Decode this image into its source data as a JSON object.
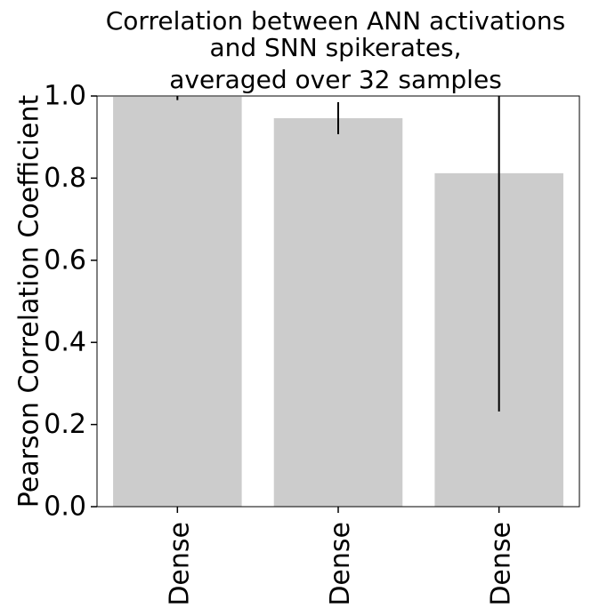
{
  "chart_data": {
    "type": "bar",
    "title_lines": [
      "Correlation between ANN activations",
      "and SNN spikerates,",
      "averaged over 32 samples"
    ],
    "xlabel": "",
    "ylabel": "Pearson Correlation Coefficient",
    "ylim": [
      0.0,
      1.0
    ],
    "yticks": [
      "0.0",
      "0.2",
      "0.4",
      "0.6",
      "0.8",
      "1.0"
    ],
    "categories": [
      "Dense",
      "Dense",
      "Dense"
    ],
    "values": [
      0.998,
      0.946,
      0.812
    ],
    "error_bars": [
      [
        0.99,
        1.0
      ],
      [
        0.907,
        0.985
      ],
      [
        0.232,
        1.0
      ]
    ],
    "grid": false,
    "legend": "none",
    "bar_color": "#cccccc",
    "error_color": "#000000"
  }
}
